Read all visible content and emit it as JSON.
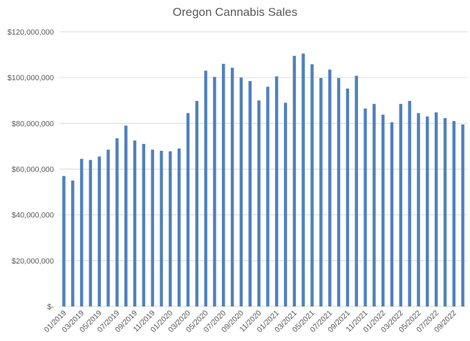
{
  "chart_data": {
    "type": "bar",
    "title": "Oregon Cannabis Sales",
    "xlabel": "",
    "ylabel": "",
    "ylim": [
      0,
      120000000
    ],
    "y_ticks": [
      {
        "value": 0,
        "label": "$-"
      },
      {
        "value": 20000000,
        "label": "$20,000,000"
      },
      {
        "value": 40000000,
        "label": "$40,000,000"
      },
      {
        "value": 60000000,
        "label": "$60,000,000"
      },
      {
        "value": 80000000,
        "label": "$80,000,000"
      },
      {
        "value": 100000000,
        "label": "$100,000,000"
      },
      {
        "value": 120000000,
        "label": "$120,000,000"
      }
    ],
    "grid": true,
    "color": "#4F81BD",
    "categories": [
      "01/2019",
      "02/2019",
      "03/2019",
      "04/2019",
      "05/2019",
      "06/2019",
      "07/2019",
      "08/2019",
      "09/2019",
      "10/2019",
      "11/2019",
      "12/2019",
      "01/2020",
      "02/2020",
      "03/2020",
      "04/2020",
      "05/2020",
      "06/2020",
      "07/2020",
      "08/2020",
      "09/2020",
      "10/2020",
      "11/2020",
      "12/2020",
      "01/2021",
      "02/2021",
      "03/2021",
      "04/2021",
      "05/2021",
      "06/2021",
      "07/2021",
      "08/2021",
      "09/2021",
      "10/2021",
      "11/2021",
      "12/2021",
      "01/2022",
      "02/2022",
      "03/2022",
      "04/2022",
      "05/2022",
      "06/2022",
      "07/2022",
      "08/2022",
      "09/2022",
      "10/2022"
    ],
    "x_tick_labels": [
      "01/2019",
      "03/2019",
      "05/2019",
      "07/2019",
      "09/2019",
      "11/2019",
      "01/2020",
      "03/2020",
      "05/2020",
      "07/2020",
      "09/2020",
      "11/2020",
      "01/2021",
      "03/2021",
      "05/2021",
      "07/2021",
      "09/2021",
      "11/2021",
      "01/2022",
      "03/2022",
      "05/2022",
      "07/2022",
      "09/2022"
    ],
    "values": [
      57000000,
      55000000,
      64500000,
      64000000,
      65500000,
      68500000,
      73500000,
      79000000,
      72500000,
      71000000,
      68500000,
      68000000,
      67800000,
      69000000,
      84500000,
      89800000,
      103000000,
      100300000,
      106000000,
      104300000,
      100000000,
      98500000,
      90000000,
      96000000,
      100500000,
      89000000,
      109500000,
      110500000,
      105800000,
      99800000,
      103500000,
      99800000,
      95200000,
      100800000,
      86500000,
      88500000,
      83800000,
      80500000,
      88500000,
      89800000,
      84500000,
      83000000,
      84800000,
      82300000,
      81000000,
      79500000
    ]
  }
}
